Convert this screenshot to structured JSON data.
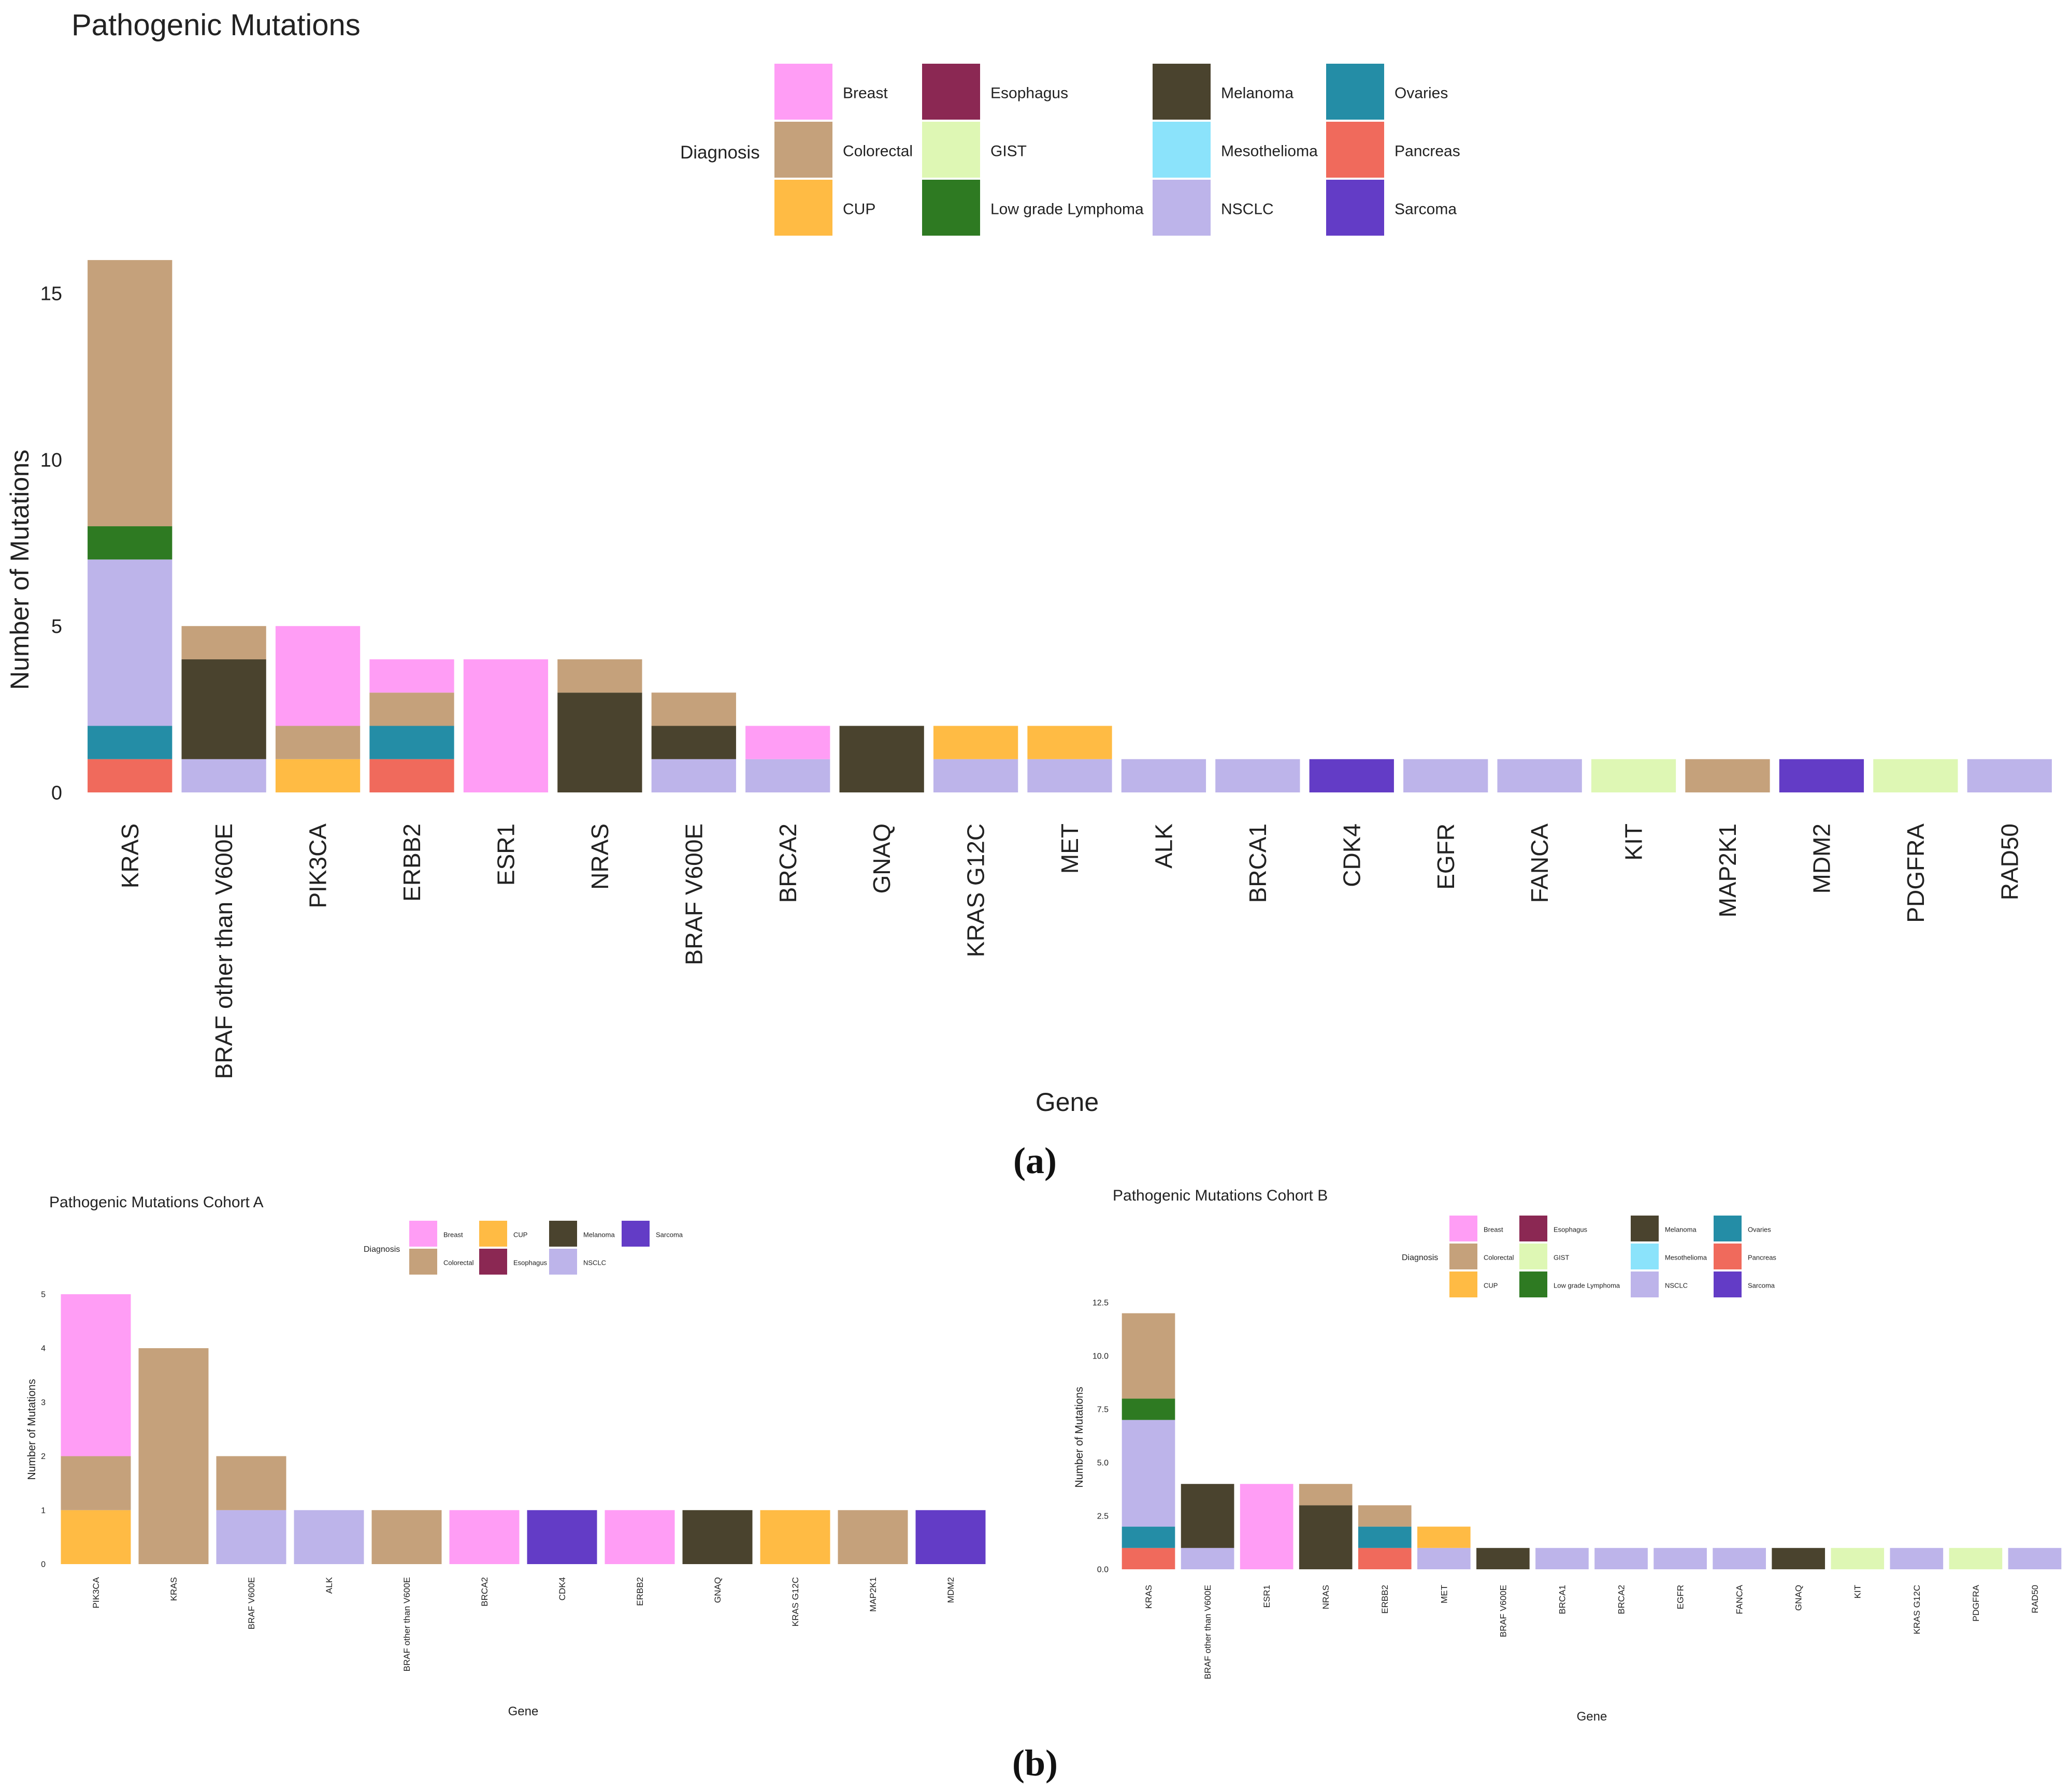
{
  "diagnosis_colors": {
    "Breast": "#FF9DF5",
    "Colorectal": "#C5A17B",
    "CUP": "#FFBB44",
    "Esophagus": "#8B2853",
    "GIST": "#DEF7B4",
    "Low grade Lymphoma": "#2E7A22",
    "Melanoma": "#4A432E",
    "Mesothelioma": "#8BE3FB",
    "NSCLC": "#BDB4EA",
    "Ovaries": "#248DA6",
    "Pancreas": "#F06A5C",
    "Sarcoma": "#633CC6"
  },
  "captions": {
    "a": "(a)",
    "b": "(b)"
  },
  "chart_data": [
    {
      "id": "a",
      "type": "bar",
      "stacked": true,
      "title": "Pathogenic Mutations",
      "xlabel": "Gene",
      "ylabel": "Number of Mutations",
      "ylim": [
        0,
        16.5
      ],
      "yticks": [
        0,
        5,
        10,
        15
      ],
      "ytick_labels": [
        "0",
        "5",
        "10",
        "15"
      ],
      "legend_title": "Diagnosis",
      "legend_rows": 3,
      "legend": [
        "Breast",
        "Colorectal",
        "CUP",
        "Esophagus",
        "GIST",
        "Low grade Lymphoma",
        "Melanoma",
        "Mesothelioma",
        "NSCLC",
        "Ovaries",
        "Pancreas",
        "Sarcoma"
      ],
      "categories": [
        "KRAS",
        "BRAF other than V600E",
        "PIK3CA",
        "ERBB2",
        "ESR1",
        "NRAS",
        "BRAF V600E",
        "BRCA2",
        "GNAQ",
        "KRAS G12C",
        "MET",
        "ALK",
        "BRCA1",
        "CDK4",
        "EGFR",
        "FANCA",
        "KIT",
        "MAP2K1",
        "MDM2",
        "PDGFRA",
        "RAD50"
      ],
      "stacks": [
        [
          [
            "Pancreas",
            1
          ],
          [
            "Ovaries",
            1
          ],
          [
            "NSCLC",
            5
          ],
          [
            "Low grade Lymphoma",
            1
          ],
          [
            "Colorectal",
            8
          ]
        ],
        [
          [
            "NSCLC",
            1
          ],
          [
            "Melanoma",
            3
          ],
          [
            "Colorectal",
            1
          ]
        ],
        [
          [
            "CUP",
            1
          ],
          [
            "Colorectal",
            1
          ],
          [
            "Breast",
            3
          ]
        ],
        [
          [
            "Pancreas",
            1
          ],
          [
            "Ovaries",
            1
          ],
          [
            "Colorectal",
            1
          ],
          [
            "Breast",
            1
          ]
        ],
        [
          [
            "Breast",
            4
          ]
        ],
        [
          [
            "Melanoma",
            3
          ],
          [
            "Colorectal",
            1
          ]
        ],
        [
          [
            "NSCLC",
            1
          ],
          [
            "Melanoma",
            1
          ],
          [
            "Colorectal",
            1
          ]
        ],
        [
          [
            "NSCLC",
            1
          ],
          [
            "Breast",
            1
          ]
        ],
        [
          [
            "Melanoma",
            2
          ]
        ],
        [
          [
            "NSCLC",
            1
          ],
          [
            "CUP",
            1
          ]
        ],
        [
          [
            "NSCLC",
            1
          ],
          [
            "CUP",
            1
          ]
        ],
        [
          [
            "NSCLC",
            1
          ]
        ],
        [
          [
            "NSCLC",
            1
          ]
        ],
        [
          [
            "Sarcoma",
            1
          ]
        ],
        [
          [
            "NSCLC",
            1
          ]
        ],
        [
          [
            "NSCLC",
            1
          ]
        ],
        [
          [
            "GIST",
            1
          ]
        ],
        [
          [
            "Colorectal",
            1
          ]
        ],
        [
          [
            "Sarcoma",
            1
          ]
        ],
        [
          [
            "GIST",
            1
          ]
        ],
        [
          [
            "NSCLC",
            1
          ]
        ]
      ]
    },
    {
      "id": "b1",
      "type": "bar",
      "stacked": true,
      "title": "Pathogenic Mutations Cohort A",
      "xlabel": "Gene",
      "ylabel": "Number of Mutations",
      "ylim": [
        0,
        5.2
      ],
      "yticks": [
        0,
        1,
        2,
        3,
        4,
        5
      ],
      "ytick_labels": [
        "0",
        "1",
        "2",
        "3",
        "4",
        "5"
      ],
      "legend_title": "Diagnosis",
      "legend_rows": 2,
      "legend": [
        "Breast",
        "Colorectal",
        "CUP",
        "Esophagus",
        "Melanoma",
        "NSCLC",
        "Sarcoma"
      ],
      "categories": [
        "PIK3CA",
        "KRAS",
        "BRAF V600E",
        "ALK",
        "BRAF other than V600E",
        "BRCA2",
        "CDK4",
        "ERBB2",
        "GNAQ",
        "KRAS G12C",
        "MAP2K1",
        "MDM2"
      ],
      "stacks": [
        [
          [
            "CUP",
            1
          ],
          [
            "Colorectal",
            1
          ],
          [
            "Breast",
            3
          ]
        ],
        [
          [
            "Colorectal",
            4
          ]
        ],
        [
          [
            "NSCLC",
            1
          ],
          [
            "Colorectal",
            1
          ]
        ],
        [
          [
            "NSCLC",
            1
          ]
        ],
        [
          [
            "Colorectal",
            1
          ]
        ],
        [
          [
            "Breast",
            1
          ]
        ],
        [
          [
            "Sarcoma",
            1
          ]
        ],
        [
          [
            "Breast",
            1
          ]
        ],
        [
          [
            "Melanoma",
            1
          ]
        ],
        [
          [
            "CUP",
            1
          ]
        ],
        [
          [
            "Colorectal",
            1
          ]
        ],
        [
          [
            "Sarcoma",
            1
          ]
        ]
      ]
    },
    {
      "id": "b2",
      "type": "bar",
      "stacked": true,
      "title": "Pathogenic Mutations Cohort B",
      "xlabel": "Gene",
      "ylabel": "Number of Mutations",
      "ylim": [
        0,
        12.5
      ],
      "yticks": [
        0,
        2.5,
        5,
        7.5,
        10,
        12.5
      ],
      "ytick_labels": [
        "0.0",
        "2.5",
        "5.0",
        "7.5",
        "10.0",
        "12.5"
      ],
      "legend_title": "Diagnosis",
      "legend_rows": 3,
      "legend": [
        "Breast",
        "Colorectal",
        "CUP",
        "Esophagus",
        "GIST",
        "Low grade Lymphoma",
        "Melanoma",
        "Mesothelioma",
        "NSCLC",
        "Ovaries",
        "Pancreas",
        "Sarcoma"
      ],
      "categories": [
        "KRAS",
        "BRAF other than V600E",
        "ESR1",
        "NRAS",
        "ERBB2",
        "MET",
        "BRAF V600E",
        "BRCA1",
        "BRCA2",
        "EGFR",
        "FANCA",
        "GNAQ",
        "KIT",
        "KRAS G12C",
        "PDGFRA",
        "RAD50"
      ],
      "stacks": [
        [
          [
            "Pancreas",
            1
          ],
          [
            "Ovaries",
            1
          ],
          [
            "NSCLC",
            5
          ],
          [
            "Low grade Lymphoma",
            1
          ],
          [
            "Colorectal",
            4
          ]
        ],
        [
          [
            "NSCLC",
            1
          ],
          [
            "Melanoma",
            3
          ]
        ],
        [
          [
            "Breast",
            4
          ]
        ],
        [
          [
            "Melanoma",
            3
          ],
          [
            "Colorectal",
            1
          ]
        ],
        [
          [
            "Pancreas",
            1
          ],
          [
            "Ovaries",
            1
          ],
          [
            "Colorectal",
            1
          ]
        ],
        [
          [
            "NSCLC",
            1
          ],
          [
            "CUP",
            1
          ]
        ],
        [
          [
            "Melanoma",
            1
          ]
        ],
        [
          [
            "NSCLC",
            1
          ]
        ],
        [
          [
            "NSCLC",
            1
          ]
        ],
        [
          [
            "NSCLC",
            1
          ]
        ],
        [
          [
            "NSCLC",
            1
          ]
        ],
        [
          [
            "Melanoma",
            1
          ]
        ],
        [
          [
            "GIST",
            1
          ]
        ],
        [
          [
            "NSCLC",
            1
          ]
        ],
        [
          [
            "GIST",
            1
          ]
        ],
        [
          [
            "NSCLC",
            1
          ]
        ]
      ]
    }
  ]
}
